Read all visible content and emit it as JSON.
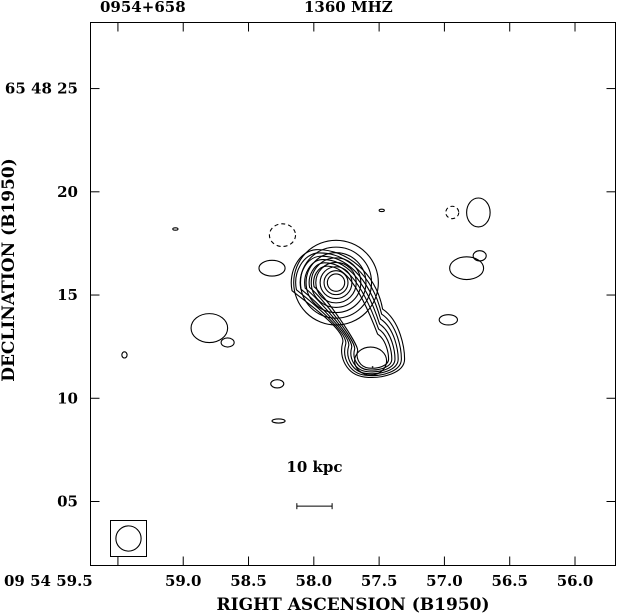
{
  "header": {
    "source": "0954+658",
    "frequency": "1360 MHZ"
  },
  "chart_data": {
    "type": "contour",
    "title": "",
    "xlabel": "RIGHT ASCENSION (B1950)",
    "ylabel": "DECLINATION (B1950)",
    "x_ticks": [
      {
        "value": 59.5,
        "label": "09 54 59.5"
      },
      {
        "value": 59.0,
        "label": "59.0"
      },
      {
        "value": 58.5,
        "label": "58.5"
      },
      {
        "value": 58.0,
        "label": "58.0"
      },
      {
        "value": 57.5,
        "label": "57.5"
      },
      {
        "value": 57.0,
        "label": "57.0"
      },
      {
        "value": 56.5,
        "label": "56.5"
      },
      {
        "value": 56.0,
        "label": "56.0"
      }
    ],
    "y_ticks": [
      {
        "value": 25,
        "label": "65 48 25"
      },
      {
        "value": 20,
        "label": "20"
      },
      {
        "value": 15,
        "label": "15"
      },
      {
        "value": 10,
        "label": "10"
      },
      {
        "value": 5,
        "label": "05"
      }
    ],
    "xlim": [
      59.71,
      55.69
    ],
    "ylim": [
      1.9,
      28.2
    ],
    "x_reversed": true,
    "scale_bar": {
      "label": "10 kpc",
      "x_from": 58.13,
      "x_to": 57.86,
      "y": 5.5
    },
    "beam": {
      "center_ra": 59.4,
      "center_dec": 3.0,
      "size_arcsec": 1.3
    },
    "core": {
      "ra": 57.83,
      "dec": 15.6,
      "contour_radii_arcsec": [
        2.05,
        1.72,
        1.45,
        1.2,
        0.98,
        0.77,
        0.58,
        0.42
      ]
    },
    "lobe": {
      "ra": 57.55,
      "dec": 11.9
    },
    "positive_islands": [
      {
        "ra": 58.8,
        "dec": 13.4,
        "rx": 0.14,
        "ry": 0.7
      },
      {
        "ra": 58.66,
        "dec": 12.7,
        "rx": 0.05,
        "ry": 0.22
      },
      {
        "ra": 58.32,
        "dec": 16.3,
        "rx": 0.1,
        "ry": 0.38
      },
      {
        "ra": 58.28,
        "dec": 10.7,
        "rx": 0.05,
        "ry": 0.2
      },
      {
        "ra": 58.27,
        "dec": 8.9,
        "rx": 0.05,
        "ry": 0.1
      },
      {
        "ra": 59.45,
        "dec": 12.1,
        "rx": 0.02,
        "ry": 0.15
      },
      {
        "ra": 59.06,
        "dec": 18.2,
        "rx": 0.02,
        "ry": 0.05
      },
      {
        "ra": 57.48,
        "dec": 19.1,
        "rx": 0.02,
        "ry": 0.05
      },
      {
        "ra": 56.97,
        "dec": 13.8,
        "rx": 0.07,
        "ry": 0.25
      },
      {
        "ra": 56.83,
        "dec": 16.3,
        "rx": 0.13,
        "ry": 0.55
      },
      {
        "ra": 56.73,
        "dec": 16.9,
        "rx": 0.05,
        "ry": 0.25
      },
      {
        "ra": 56.74,
        "dec": 19.0,
        "rx": 0.09,
        "ry": 0.7
      }
    ],
    "negative_islands": [
      {
        "ra": 58.24,
        "dec": 17.9,
        "rx": 0.1,
        "ry": 0.55
      },
      {
        "ra": 56.94,
        "dec": 19.0,
        "rx": 0.05,
        "ry": 0.3
      }
    ]
  }
}
